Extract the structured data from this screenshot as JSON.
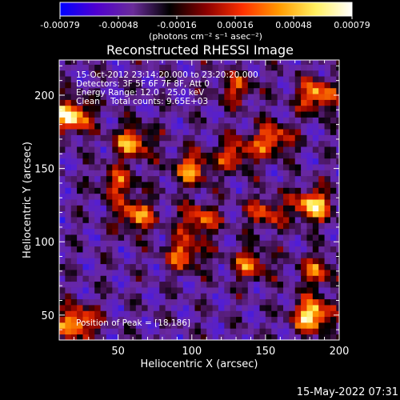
{
  "colorbar": {
    "ticks": [
      "-0.00079",
      "-0.00048",
      "-0.00016",
      "0.00016",
      "0.00048",
      "0.00079"
    ],
    "unit_label": "(photons cm⁻² s⁻¹ asec⁻²)",
    "colors": [
      "#0000ff",
      "#5000d0",
      "#6a2c9a",
      "#000000",
      "#8a0000",
      "#ff3000",
      "#ff9a00",
      "#fff060",
      "#ffffff"
    ]
  },
  "chart_data": {
    "type": "heatmap",
    "title": "Reconstructed RHESSI Image",
    "xlabel": "Heliocentric X (arcsec)",
    "ylabel": "Heliocentric Y (arcsec)",
    "xlim": [
      10,
      200
    ],
    "ylim": [
      33,
      224
    ],
    "x_ticks": [
      "50",
      "100",
      "150",
      "200"
    ],
    "y_ticks": [
      "50",
      "100",
      "150",
      "200"
    ],
    "x_tick_values": [
      50,
      100,
      150,
      200
    ],
    "y_tick_values": [
      50,
      100,
      150,
      200
    ],
    "zlim": [
      -0.00079,
      0.00079
    ],
    "annotations": [
      "15-Oct-2012 23:14:20.000 to 23:20:20.000",
      "Detectors: 3F 5F 6F 7F 8F, Att 0",
      "Energy Range: 12.0 - 25.0 keV",
      "Clean    Total counts: 9.65E+03"
    ],
    "peak_label": "Position of Peak = [18,186]",
    "hotspots": [
      {
        "x": 18,
        "y": 186,
        "strength": 1.0
      },
      {
        "x": 182,
        "y": 50,
        "strength": 1.0
      },
      {
        "x": 22,
        "y": 45,
        "strength": 0.85
      },
      {
        "x": 182,
        "y": 125,
        "strength": 0.9
      },
      {
        "x": 185,
        "y": 200,
        "strength": 0.8
      },
      {
        "x": 60,
        "y": 168,
        "strength": 0.75
      },
      {
        "x": 100,
        "y": 150,
        "strength": 0.7
      },
      {
        "x": 155,
        "y": 170,
        "strength": 0.7
      },
      {
        "x": 62,
        "y": 118,
        "strength": 0.7
      },
      {
        "x": 105,
        "y": 115,
        "strength": 0.65
      },
      {
        "x": 95,
        "y": 92,
        "strength": 0.65
      },
      {
        "x": 130,
        "y": 160,
        "strength": 0.6
      },
      {
        "x": 140,
        "y": 85,
        "strength": 0.6
      },
      {
        "x": 50,
        "y": 140,
        "strength": 0.55
      },
      {
        "x": 150,
        "y": 120,
        "strength": 0.55
      },
      {
        "x": 130,
        "y": 205,
        "strength": 0.5
      },
      {
        "x": 185,
        "y": 80,
        "strength": 0.55
      }
    ]
  },
  "footer": {
    "timestamp": "15-May-2022 07:31"
  }
}
